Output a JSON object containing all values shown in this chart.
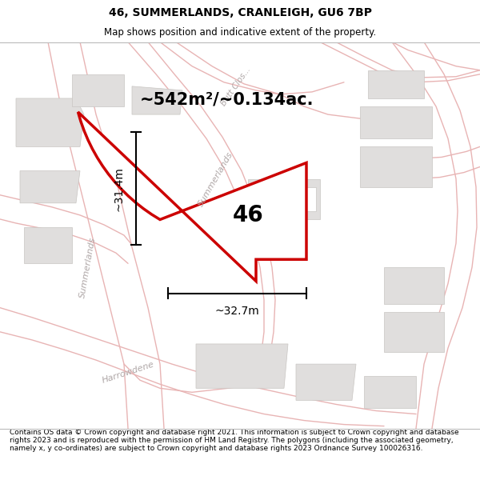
{
  "title": "46, SUMMERLANDS, CRANLEIGH, GU6 7BP",
  "subtitle": "Map shows position and indicative extent of the property.",
  "footer": "Contains OS data © Crown copyright and database right 2021. This information is subject to Crown copyright and database rights 2023 and is reproduced with the permission of HM Land Registry. The polygons (including the associated geometry, namely x, y co-ordinates) are subject to Crown copyright and database rights 2023 Ordnance Survey 100026316.",
  "area_label": "~542m²/~0.134ac.",
  "number_label": "46",
  "dim_width": "~32.7m",
  "dim_height": "~31.4m",
  "map_bg": "#f7f6f4",
  "road_line_color": "#e8b4b4",
  "building_color": "#e0dedd",
  "building_edge": "#c8c5c2",
  "road_label_color": "#b0a8a8",
  "plot_fill": "#ffffff",
  "plot_edge": "#cc0000",
  "annotation_color": "#000000",
  "title_fontsize": 10,
  "subtitle_fontsize": 8.5,
  "footer_fontsize": 6.5,
  "area_fontsize": 15,
  "number_fontsize": 20,
  "dim_fontsize": 10,
  "road_lw": 1.2
}
